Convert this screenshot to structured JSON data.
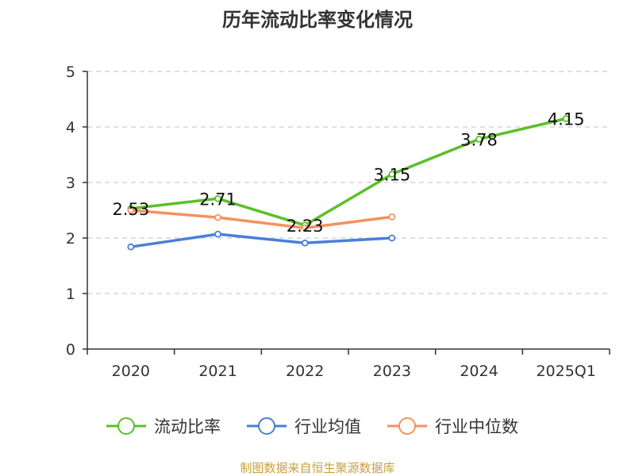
{
  "chart_data": {
    "type": "line",
    "title": "历年流动比率变化情况",
    "categories": [
      "2020",
      "2021",
      "2022",
      "2023",
      "2024",
      "2025Q1"
    ],
    "ylim": [
      0,
      5
    ],
    "yticks": [
      0,
      1,
      2,
      3,
      4,
      5
    ],
    "grid": true,
    "legend_position": "bottom",
    "series": [
      {
        "name": "流动比率",
        "color": "#5cbf2a",
        "values": [
          2.53,
          2.71,
          2.23,
          3.15,
          3.78,
          4.15
        ],
        "labels": [
          "2.53",
          "2.71",
          "2.23",
          "3.15",
          "3.78",
          "4.15"
        ]
      },
      {
        "name": "行业均值",
        "color": "#4a7fd8",
        "values": [
          1.84,
          2.07,
          1.91,
          2.0,
          null,
          null
        ]
      },
      {
        "name": "行业中位数",
        "color": "#f5925e",
        "values": [
          2.5,
          2.37,
          2.18,
          2.38,
          null,
          null
        ]
      }
    ]
  },
  "source": "制图数据来自恒生聚源数据库"
}
